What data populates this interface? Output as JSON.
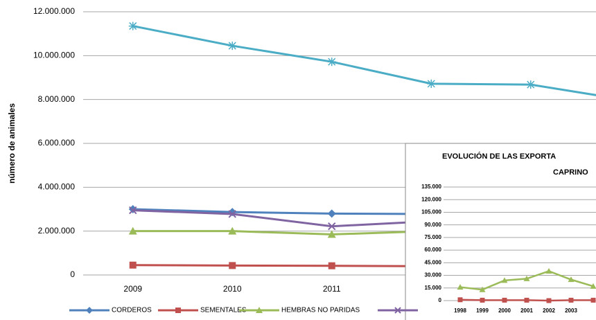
{
  "chart_data": [
    {
      "type": "line",
      "y_label": "número de animales",
      "categories": [
        "2009",
        "2010",
        "2011",
        null,
        null,
        null
      ],
      "ylim": [
        0,
        12000000
      ],
      "yticks": [
        {
          "value": 0,
          "label": "0"
        },
        {
          "value": 2000000,
          "label": "2.000.000"
        },
        {
          "value": 4000000,
          "label": "4.000.000"
        },
        {
          "value": 6000000,
          "label": "6.000.000"
        },
        {
          "value": 8000000,
          "label": "8.000.000"
        },
        {
          "value": 10000000,
          "label": "10.000.000"
        },
        {
          "value": 12000000,
          "label": "12.000.000"
        }
      ],
      "grid": true,
      "series": [
        {
          "color": "#4bacc6",
          "marker": "star",
          "values": [
            11350000,
            10450000,
            9720000,
            8720000,
            8680000,
            7950000
          ]
        },
        {
          "name": "CORDEROS",
          "color": "#4f81bd",
          "marker": "diamond",
          "values": [
            3000000,
            2870000,
            2800000,
            2780000,
            null,
            null
          ]
        },
        {
          "name": "SEMENTALES",
          "color": "#c0504d",
          "marker": "square",
          "values": [
            450000,
            430000,
            420000,
            400000,
            null,
            null
          ]
        },
        {
          "name": "HEMBRAS NO PARIDAS",
          "color": "#9bbb59",
          "marker": "triangle",
          "values": [
            2000000,
            2000000,
            1850000,
            2000000,
            null,
            null
          ]
        },
        {
          "color": "#8064a2",
          "marker": "x",
          "values": [
            2950000,
            2780000,
            2220000,
            2450000,
            null,
            null
          ]
        }
      ]
    },
    {
      "type": "line",
      "title_lines": [
        "EVOLUCIÓN DE LAS EXPORTA",
        "CAPRINO"
      ],
      "categories": [
        "1998",
        "1999",
        "2000",
        "2001",
        "2002",
        "2003",
        null
      ],
      "ylim": [
        0,
        135000
      ],
      "yticks": [
        {
          "value": 0,
          "label": "0"
        },
        {
          "value": 15000,
          "label": "15.000"
        },
        {
          "value": 30000,
          "label": "30.000"
        },
        {
          "value": 45000,
          "label": "45.000"
        },
        {
          "value": 60000,
          "label": "60.000"
        },
        {
          "value": 75000,
          "label": "75.000"
        },
        {
          "value": 90000,
          "label": "90.000"
        },
        {
          "value": 105000,
          "label": "105.000"
        },
        {
          "value": 120000,
          "label": "120.000"
        },
        {
          "value": 135000,
          "label": "135.000"
        }
      ],
      "grid": true,
      "series": [
        {
          "color": "#9bbb59",
          "marker": "triangle",
          "values": [
            16000,
            13000,
            24000,
            26000,
            35000,
            25000,
            17000
          ]
        },
        {
          "color": "#c0504d",
          "marker": "square",
          "values": [
            1000,
            500,
            500,
            500,
            0,
            500,
            500
          ]
        }
      ]
    }
  ]
}
